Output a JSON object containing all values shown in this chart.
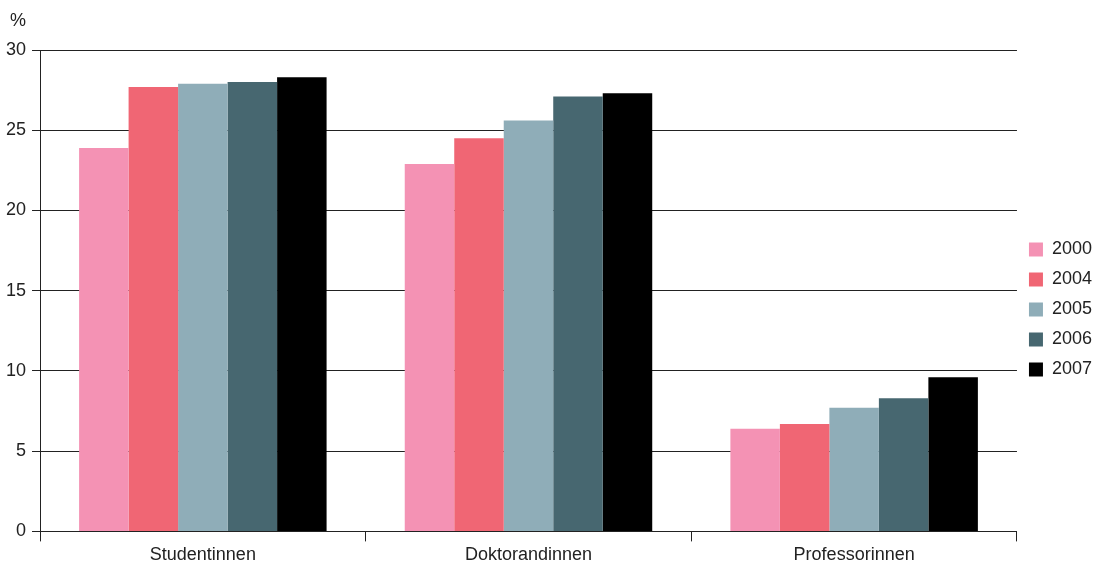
{
  "chart_data": {
    "type": "bar",
    "ylabel": "%",
    "categories": [
      "Studentinnen",
      "Doktorandinnen",
      "Professorinnen"
    ],
    "series": [
      {
        "name": "2000",
        "color": "#f492b4",
        "values": [
          23.9,
          22.9,
          6.4
        ]
      },
      {
        "name": "2004",
        "color": "#f06674",
        "values": [
          27.7,
          24.5,
          6.7
        ]
      },
      {
        "name": "2005",
        "color": "#8fadb8",
        "values": [
          27.9,
          25.6,
          7.7
        ]
      },
      {
        "name": "2006",
        "color": "#476770",
        "values": [
          28.0,
          27.1,
          8.3
        ]
      },
      {
        "name": "2007",
        "color": "#000000",
        "values": [
          28.3,
          27.3,
          9.6
        ]
      }
    ],
    "ylim": [
      0,
      30
    ],
    "yticks": [
      0,
      5,
      10,
      15,
      20,
      25,
      30
    ],
    "grid": "y",
    "legend": "right"
  }
}
